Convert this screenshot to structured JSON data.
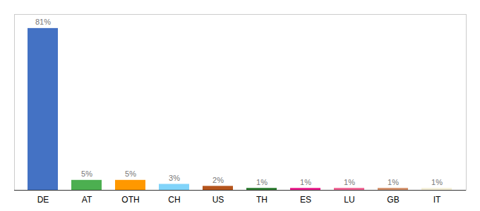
{
  "chart_data": {
    "type": "bar",
    "categories": [
      "DE",
      "AT",
      "OTH",
      "CH",
      "US",
      "TH",
      "ES",
      "LU",
      "GB",
      "IT"
    ],
    "values": [
      81,
      5,
      5,
      3,
      2,
      1,
      1,
      1,
      1,
      1
    ],
    "value_labels": [
      "81%",
      "5%",
      "5%",
      "3%",
      "2%",
      "1%",
      "1%",
      "1%",
      "1%",
      "1%"
    ],
    "colors": [
      "#4472c4",
      "#4caf50",
      "#ff9800",
      "#81d4fa",
      "#b5541c",
      "#2e7d32",
      "#e91e8c",
      "#f06292",
      "#d4906a",
      "#f5f0d8"
    ],
    "ylim": [
      0,
      88
    ],
    "data_labels": true,
    "tick_labels": "x"
  }
}
